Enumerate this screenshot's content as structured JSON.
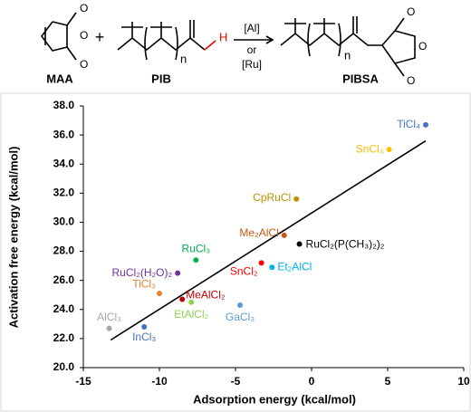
{
  "scheme": {
    "reactant1": "MAA",
    "plus": "+",
    "reactant2": "PIB",
    "n1": "n",
    "catalyst1": "[Al]",
    "or": "or",
    "catalyst2": "[Ru]",
    "product": "PIBSA",
    "n2": "n",
    "o1": "O",
    "o2": "O",
    "o3": "O",
    "o4": "O",
    "o5": "O",
    "o6": "O",
    "h": "H"
  },
  "chart_data": {
    "type": "scatter",
    "x_label": "Adsorption energy (kcal/mol)",
    "y_label": "Activation free energy (kcal/mol)",
    "xlim": [
      -15,
      10
    ],
    "xticks": [
      -15,
      -10,
      -5,
      0,
      5,
      10
    ],
    "ylim": [
      20,
      38
    ],
    "yticks": [
      {
        "value": 20,
        "label": "20.0"
      },
      {
        "value": 22,
        "label": "22.0"
      },
      {
        "value": 24,
        "label": "24.0"
      },
      {
        "value": 26,
        "label": "26.0"
      },
      {
        "value": 28,
        "label": "28.0"
      },
      {
        "value": 30,
        "label": "30.0"
      },
      {
        "value": 32,
        "label": "32.0"
      },
      {
        "value": 34,
        "label": "34.0"
      },
      {
        "value": 36,
        "label": "36.0"
      },
      {
        "value": 38,
        "label": "38.0"
      }
    ],
    "points": [
      {
        "label": "TiCl₄",
        "x": 7.5,
        "y": 36.7,
        "color": "#4472c4"
      },
      {
        "label": "SnCl₄",
        "x": 5.1,
        "y": 35.0,
        "color": "#ffc000"
      },
      {
        "label": "CpRuCl",
        "x": -1.0,
        "y": 31.6,
        "color": "#bf9000"
      },
      {
        "label": "Me₂AlCl",
        "x": -1.8,
        "y": 29.1,
        "color": "#c55a11"
      },
      {
        "label": "RuCl₂(P(CH₃)₂)₂",
        "x": -0.8,
        "y": 28.5,
        "color": "#000000"
      },
      {
        "label": "SnCl₂",
        "x": -3.3,
        "y": 27.2,
        "color": "#ff0000"
      },
      {
        "label": "Et₂AlCl",
        "x": -2.6,
        "y": 26.9,
        "color": "#00b0f0"
      },
      {
        "label": "RuCl₃",
        "x": -7.6,
        "y": 27.4,
        "color": "#00b050"
      },
      {
        "label": "RuCl₂(H₂O)₂",
        "x": -8.8,
        "y": 26.5,
        "color": "#7030a0"
      },
      {
        "label": "TiCl₃",
        "x": -10.0,
        "y": 25.1,
        "color": "#ed7d31"
      },
      {
        "label": "MeAlCl₂",
        "x": -8.5,
        "y": 24.7,
        "color": "#c00000"
      },
      {
        "label": "EtAlCl₂",
        "x": -7.9,
        "y": 24.5,
        "color": "#92d050"
      },
      {
        "label": "GaCl₃",
        "x": -4.7,
        "y": 24.3,
        "color": "#5b9bd5"
      },
      {
        "label": "AlCl₃",
        "x": -13.3,
        "y": 22.7,
        "color": "#a5a5a5"
      },
      {
        "label": "InCl₃",
        "x": -11.0,
        "y": 22.8,
        "color": "#4472c4"
      }
    ],
    "trendline": {
      "x": [
        -13.2,
        7.5
      ],
      "y": [
        21.9,
        35.6
      ],
      "color": "#000000"
    }
  }
}
